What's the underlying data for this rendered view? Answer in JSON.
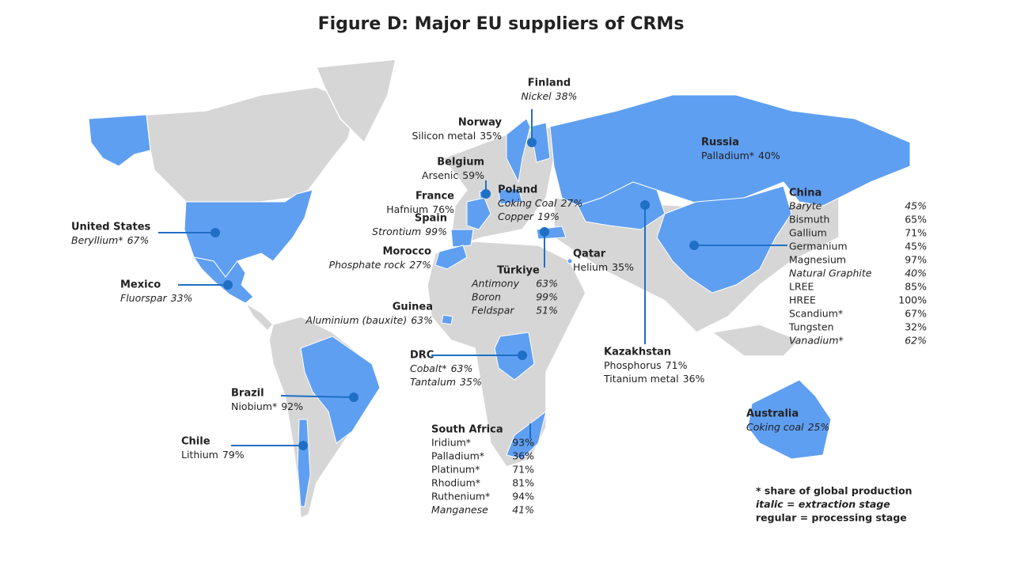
{
  "title": "Figure D: Major EU suppliers of CRMs",
  "countries": [
    {
      "name": "Finland",
      "materials": [
        {
          "name": "Nickel",
          "share": "38%",
          "italic": true
        }
      ]
    },
    {
      "name": "Norway",
      "materials": [
        {
          "name": "Silicon metal",
          "share": "35%"
        }
      ]
    },
    {
      "name": "Belgium",
      "materials": [
        {
          "name": "Arsenic",
          "share": "59%"
        }
      ]
    },
    {
      "name": "France",
      "materials": [
        {
          "name": "Hafnium",
          "share": "76%"
        }
      ]
    },
    {
      "name": "Poland",
      "materials": [
        {
          "name": "Coking Coal",
          "share": "27%",
          "italic": true
        },
        {
          "name": "Copper",
          "share": "19%",
          "italic": true
        }
      ]
    },
    {
      "name": "Spain",
      "materials": [
        {
          "name": "Strontium",
          "share": "99%",
          "italic": true
        }
      ]
    },
    {
      "name": "Morocco",
      "materials": [
        {
          "name": "Phosphate rock",
          "share": "27%",
          "italic": true
        }
      ]
    },
    {
      "name": "Türkiye",
      "materials": [
        {
          "name": "Antimony",
          "share": "63%",
          "italic": true
        },
        {
          "name": "Boron",
          "share": "99%",
          "italic": true
        },
        {
          "name": "Feldspar",
          "share": "51%",
          "italic": true
        }
      ]
    },
    {
      "name": "Qatar",
      "materials": [
        {
          "name": "Helium",
          "share": "35%"
        }
      ]
    },
    {
      "name": "Russia",
      "materials": [
        {
          "name": "Palladium*",
          "share": "40%"
        }
      ]
    },
    {
      "name": "China",
      "materials": [
        {
          "name": "Baryte",
          "share": "45%",
          "italic": true
        },
        {
          "name": "Bismuth",
          "share": "65%"
        },
        {
          "name": "Gallium",
          "share": "71%"
        },
        {
          "name": "Germanium",
          "share": "45%"
        },
        {
          "name": "Magnesium",
          "share": "97%"
        },
        {
          "name": "Natural Graphite",
          "share": "40%",
          "italic": true
        },
        {
          "name": "LREE",
          "share": "85%"
        },
        {
          "name": "HREE",
          "share": "100%"
        },
        {
          "name": "Scandium*",
          "share": "67%"
        },
        {
          "name": "Tungsten",
          "share": "32%"
        },
        {
          "name": "Vanadium*",
          "share": "62%",
          "italic": true
        }
      ]
    },
    {
      "name": "Kazakhstan",
      "materials": [
        {
          "name": "Phosphorus",
          "share": "71%"
        },
        {
          "name": "Titanium metal",
          "share": "36%"
        }
      ]
    },
    {
      "name": "United States",
      "materials": [
        {
          "name": "Beryllium*",
          "share": "67%",
          "italic": true
        }
      ]
    },
    {
      "name": "Mexico",
      "materials": [
        {
          "name": "Fluorspar",
          "share": "33%",
          "italic": true
        }
      ]
    },
    {
      "name": "Guinea",
      "materials": [
        {
          "name": "Aluminium (bauxite)",
          "share": "63%",
          "italic": true
        }
      ]
    },
    {
      "name": "DRC",
      "materials": [
        {
          "name": "Cobalt*",
          "share": "63%",
          "italic": true
        },
        {
          "name": "Tantalum",
          "share": "35%",
          "italic": true
        }
      ]
    },
    {
      "name": "Brazil",
      "materials": [
        {
          "name": "Niobium*",
          "share": "92%"
        }
      ]
    },
    {
      "name": "Chile",
      "materials": [
        {
          "name": "Lithium",
          "share": "79%"
        }
      ]
    },
    {
      "name": "South Africa",
      "materials": [
        {
          "name": "Iridium*",
          "share": "93%"
        },
        {
          "name": "Palladium*",
          "share": "36%"
        },
        {
          "name": "Platinum*",
          "share": "71%"
        },
        {
          "name": "Rhodium*",
          "share": "81%"
        },
        {
          "name": "Ruthenium*",
          "share": "94%"
        },
        {
          "name": "Manganese",
          "share": "41%",
          "italic": true
        }
      ]
    },
    {
      "name": "Australia",
      "materials": [
        {
          "name": "Coking coal",
          "share": "25%",
          "italic": true
        }
      ]
    }
  ],
  "notes": [
    "* share of global production",
    "italic = extraction stage",
    "regular = processing stage"
  ]
}
